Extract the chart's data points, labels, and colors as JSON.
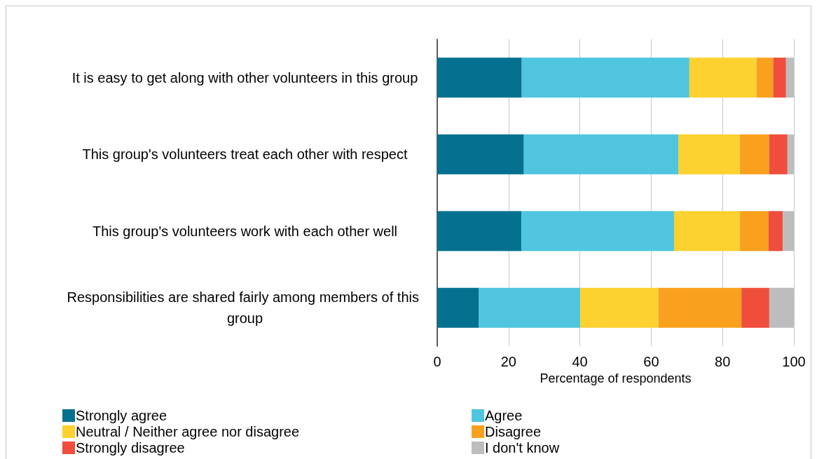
{
  "chart_data": {
    "type": "bar",
    "orientation": "horizontal",
    "stacked": true,
    "xlabel": "Percentage of respondents",
    "categories": [
      "It is easy to get along with other volunteers in this group",
      "This group's volunteers treat each other with respect",
      "This group's volunteers work with each other well",
      "Responsibilities are shared fairly among members of this group"
    ],
    "series": [
      {
        "name": "Strongly agree",
        "color": "#03718f",
        "values": [
          23.7,
          24.3,
          23.6,
          11.7
        ]
      },
      {
        "name": "Agree",
        "color": "#4fc5e0",
        "values": [
          47.0,
          43.3,
          42.8,
          28.4
        ]
      },
      {
        "name": "Neutral / Neither agree nor disagree",
        "color": "#fdd12f",
        "values": [
          18.8,
          17.2,
          18.4,
          21.9
        ]
      },
      {
        "name": "Disagree",
        "color": "#f9a11f",
        "values": [
          4.7,
          8.3,
          8.1,
          23.3
        ]
      },
      {
        "name": "Strongly disagree",
        "color": "#ef4e3d",
        "values": [
          3.6,
          5.1,
          4.0,
          7.8
        ]
      },
      {
        "name": "I don't know",
        "color": "#bcbdbf",
        "values": [
          2.2,
          1.8,
          3.1,
          6.9
        ]
      }
    ],
    "xlim": [
      0,
      100
    ],
    "xticks": [
      0,
      20,
      40,
      60,
      80,
      100
    ],
    "grid": "x",
    "legend": "bottom"
  }
}
